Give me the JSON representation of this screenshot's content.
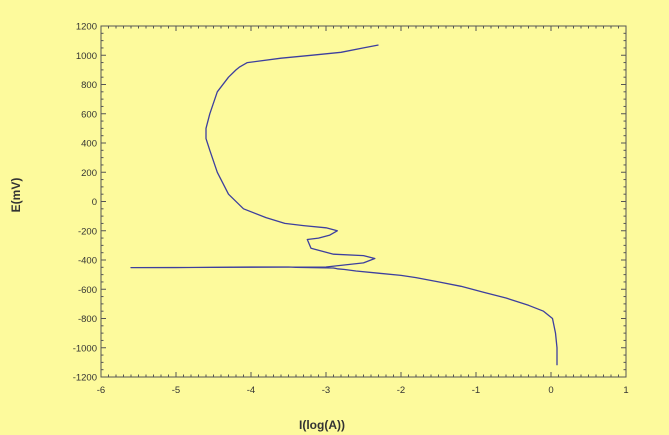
{
  "chart_data": {
    "type": "line",
    "xlabel": "I(log(A))",
    "ylabel": "E(mV)",
    "xlim": [
      -6,
      1
    ],
    "ylim": [
      -1200,
      1200
    ],
    "x_ticks": [
      -6,
      -5,
      -4,
      -3,
      -2,
      -1,
      0,
      1
    ],
    "x_tick_labels": [
      "-6",
      "-5",
      "-4",
      "-3",
      "-2",
      "-1",
      "0",
      "1"
    ],
    "y_ticks": [
      -1200,
      -1000,
      -800,
      -600,
      -400,
      -200,
      0,
      200,
      400,
      600,
      800,
      1000,
      1200
    ],
    "y_tick_labels": [
      "-1200",
      "-1000",
      "-800",
      "-600",
      "-400",
      "-200",
      "0",
      "200",
      "400",
      "600",
      "800",
      "1000",
      "1200"
    ],
    "grid": false,
    "legend": "none",
    "colors": {
      "background": "#fdfa9c",
      "line": "#3d3f9e",
      "axis": "#555555",
      "text": "#333333"
    },
    "series": [
      {
        "x": [
          0.08,
          0.08,
          0.06,
          0.02,
          -0.1,
          -0.3,
          -0.6,
          -0.9,
          -1.2,
          -1.5,
          -1.8,
          -2.0,
          -2.3,
          -2.6,
          -2.75,
          -2.85,
          -2.9,
          -3.4,
          -3.5,
          -4.0,
          -4.5,
          -5.0,
          -5.6,
          -3.0,
          -2.5,
          -2.35,
          -2.5,
          -2.9,
          -3.2,
          -3.25,
          -3.1,
          -2.95,
          -2.85,
          -3.0,
          -3.3,
          -3.55,
          -3.8,
          -4.1,
          -4.3,
          -4.45,
          -4.55,
          -4.6,
          -4.6,
          -4.55,
          -4.45,
          -4.3,
          -4.2,
          -4.15,
          -4.05,
          -3.6,
          -3.2,
          -2.8,
          -2.5,
          -2.3
        ],
        "y": [
          -1120,
          -1000,
          -900,
          -800,
          -750,
          -710,
          -660,
          -620,
          -580,
          -550,
          -520,
          -505,
          -490,
          -475,
          -465,
          -460,
          -455,
          -450,
          -448,
          -448,
          -450,
          -452,
          -452,
          -448,
          -420,
          -390,
          -370,
          -360,
          -320,
          -260,
          -250,
          -230,
          -200,
          -180,
          -165,
          -150,
          -110,
          -50,
          50,
          200,
          350,
          430,
          500,
          600,
          750,
          850,
          900,
          920,
          950,
          980,
          1000,
          1020,
          1050,
          1070
        ]
      }
    ]
  }
}
